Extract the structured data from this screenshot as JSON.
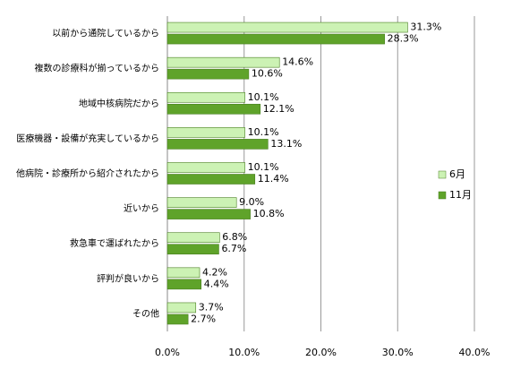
{
  "chart_data": {
    "type": "bar",
    "orientation": "horizontal",
    "categories": [
      "以前から通院しているから",
      "複数の診療科が揃っているから",
      "地域中核病院だから",
      "医療機器・設備が充実しているから",
      "他病院・診療所から紹介されたから",
      "近いから",
      "救急車で運ばれたから",
      "評判が良いから",
      "その他"
    ],
    "series": [
      {
        "name": "6月",
        "color": "#ccf2b4",
        "values": [
          31.3,
          14.6,
          10.1,
          10.1,
          10.1,
          9.0,
          6.8,
          4.2,
          3.7
        ],
        "value_labels": [
          "31.3%",
          "14.6%",
          "10.1%",
          "10.1%",
          "10.1%",
          "9.0%",
          "6.8%",
          "4.2%",
          "3.7%"
        ]
      },
      {
        "name": "11月",
        "color": "#5fa32a",
        "values": [
          28.3,
          10.6,
          12.1,
          13.1,
          11.4,
          10.8,
          6.7,
          4.4,
          2.7
        ],
        "value_labels": [
          "28.3%",
          "10.6%",
          "12.1%",
          "13.1%",
          "11.4%",
          "10.8%",
          "6.7%",
          "4.4%",
          "2.7%"
        ]
      }
    ],
    "xlim": [
      0,
      40
    ],
    "xticks": [
      {
        "value": 0,
        "label": "0.0%"
      },
      {
        "value": 10,
        "label": "10.0%"
      },
      {
        "value": 20,
        "label": "20.0%"
      },
      {
        "value": 30,
        "label": "30.0%"
      },
      {
        "value": 40,
        "label": "40.0%"
      }
    ],
    "grid": true,
    "legend": "right"
  }
}
